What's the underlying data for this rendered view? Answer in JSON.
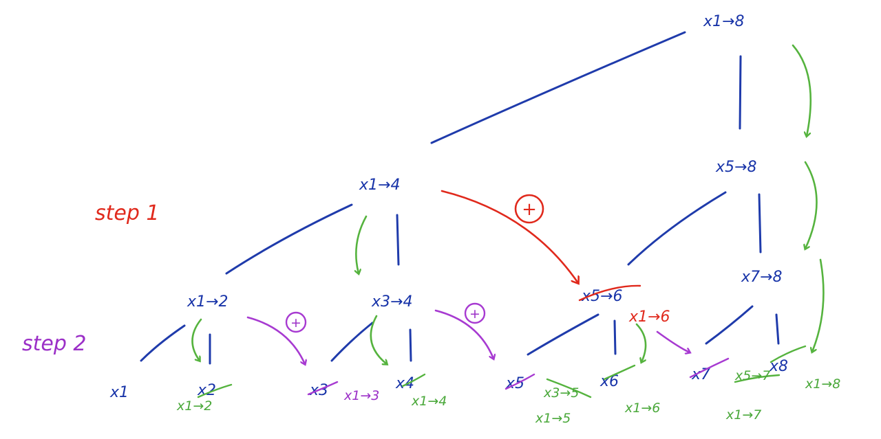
{
  "steps": {
    "step1": "step 1",
    "step2": "step 2"
  },
  "plus_symbol": "+",
  "nodes": {
    "x1_8": "x1→8",
    "x5_8": "x5→8",
    "x1_4": "x1→4",
    "x7_8": "x7→8",
    "x1_2": "x1→2",
    "x3_4": "x3→4",
    "x5_6": "x5→6",
    "x1": "x1",
    "x2": "x2",
    "x3": "x3",
    "x4": "x4",
    "x5": "x5",
    "x6": "x6",
    "x7": "x7",
    "x8": "x8"
  },
  "annotations": {
    "red_x1_6": "x1→6",
    "purple_x1_3": "x1→3",
    "green_x1_2": "x1→2",
    "green_x1_4": "x1→4",
    "green_x3_5": "x3→5",
    "green_x1_5": "x1→5",
    "green_x1_6": "x1→6",
    "green_x5_7": "x5→7",
    "green_x1_7": "x1→7",
    "green_x1_8": "x1→8"
  }
}
